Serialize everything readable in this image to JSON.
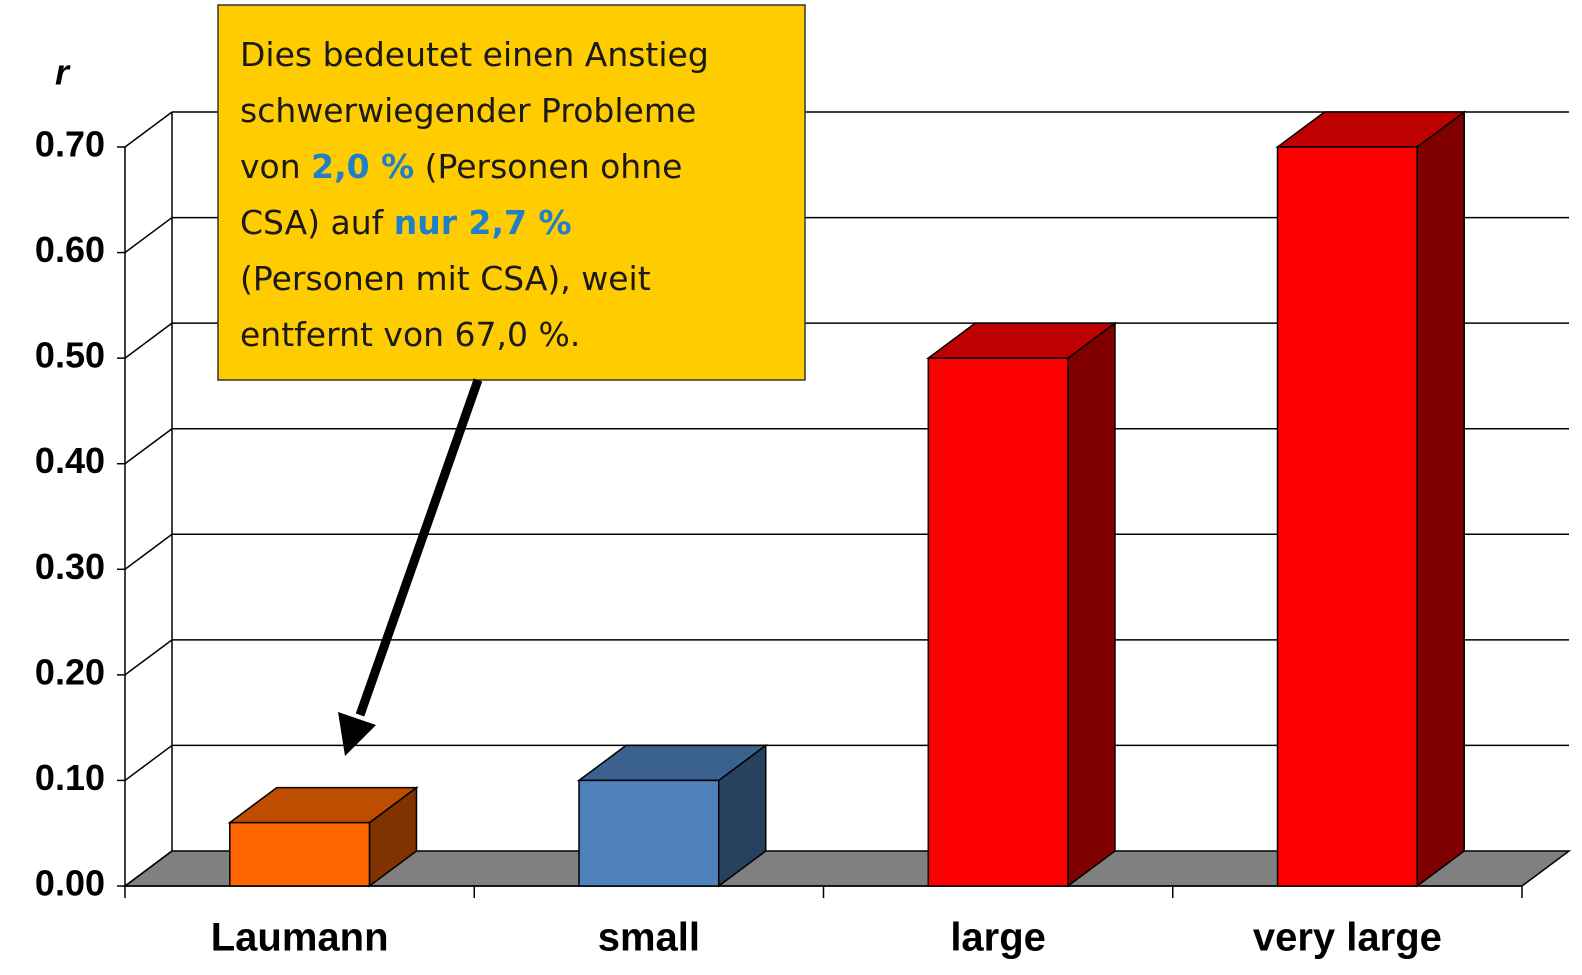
{
  "chart_data": {
    "type": "bar3d",
    "y_label": "r",
    "categories": [
      "Laumann",
      "small",
      "large",
      "very large"
    ],
    "values": [
      0.06,
      0.1,
      0.5,
      0.7
    ],
    "colors": [
      "#ff6600",
      "#4f81bd",
      "#ff0000",
      "#ff0000"
    ],
    "ylim": [
      0,
      0.7
    ],
    "yticks": [
      {
        "value": 0,
        "label": "0.00"
      },
      {
        "value": 0.1,
        "label": "0.10"
      },
      {
        "value": 0.2,
        "label": "0.20"
      },
      {
        "value": 0.3,
        "label": "0.30"
      },
      {
        "value": 0.4,
        "label": "0.40"
      },
      {
        "value": 0.5,
        "label": "0.50"
      },
      {
        "value": 0.6,
        "label": "0.60"
      },
      {
        "value": 0.7,
        "label": "0.70"
      }
    ],
    "grid": true,
    "annotation": {
      "fill": "#ffcc00",
      "highlight_color": "#1f7fc8",
      "lines": [
        [
          {
            "text": "Dies bedeutet einen Anstieg"
          }
        ],
        [
          {
            "text": "schwerwiegender Probleme"
          }
        ],
        [
          {
            "text": "von "
          },
          {
            "text": "2,0 %",
            "highlight": true
          },
          {
            "text": " (Personen ohne"
          }
        ],
        [
          {
            "text": "CSA) auf "
          },
          {
            "text": "nur 2,7 %",
            "highlight": true
          }
        ],
        [
          {
            "text": "(Personen mit CSA), weit"
          }
        ],
        [
          {
            "text": "entfernt von 67,0 %."
          }
        ]
      ]
    }
  }
}
